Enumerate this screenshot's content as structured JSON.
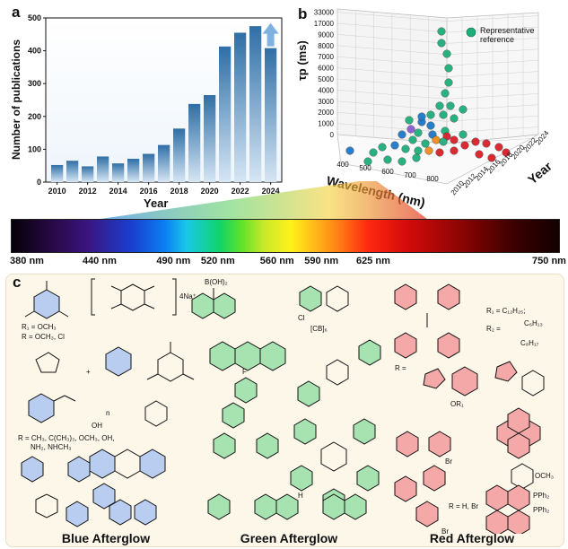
{
  "panel_a": {
    "letter": "a",
    "chart_data": {
      "type": "bar",
      "categories": [
        "2010",
        "2011",
        "2012",
        "2013",
        "2014",
        "2015",
        "2016",
        "2017",
        "2018",
        "2019",
        "2020",
        "2021",
        "2022",
        "2023",
        "2024"
      ],
      "values": [
        52,
        65,
        48,
        78,
        57,
        71,
        86,
        113,
        163,
        238,
        265,
        413,
        455,
        475,
        408
      ],
      "xlabel": "Year",
      "ylabel": "Number of publications",
      "ylim": [
        0,
        500
      ],
      "yticks": [
        "0",
        "100",
        "200",
        "300",
        "400",
        "500"
      ],
      "xticks": [
        "2010",
        "2012",
        "2014",
        "2016",
        "2018",
        "2020",
        "2022",
        "2024"
      ],
      "colors": {
        "bar_top": "#2f6fa6",
        "bar_bottom": "#cfe1f1",
        "arrow": "#7fb2e0"
      }
    }
  },
  "panel_b": {
    "letter": "b",
    "chart_data": {
      "type": "scatter",
      "xlabel": "Wavelength (nm)",
      "ylabel": "τp (ms)",
      "zlabel": "Year",
      "xticks": [
        "400",
        "500",
        "600",
        "700",
        "800"
      ],
      "yticks": [
        "0",
        "1000",
        "2000",
        "3000",
        "4000",
        "5000",
        "6000",
        "7000",
        "8000",
        "9000",
        "17000",
        "33000"
      ],
      "zticks": [
        "2010",
        "2012",
        "2014",
        "2016",
        "2018",
        "2020",
        "2022",
        "2024"
      ],
      "legend": "Representative reference",
      "legend_position": "top-right",
      "colors": {
        "green": "#1fae7a",
        "blue": "#1f78c8",
        "red": "#d8202a",
        "orange": "#f08a1c",
        "purple": "#8a5bd1"
      }
    }
  },
  "spectrum": {
    "labels": [
      {
        "text": "380 nm",
        "nm": 380
      },
      {
        "text": "440 nm",
        "nm": 440
      },
      {
        "text": "490 nm",
        "nm": 490
      },
      {
        "text": "520 nm",
        "nm": 520
      },
      {
        "text": "560 nm",
        "nm": 560
      },
      {
        "text": "590 nm",
        "nm": 590
      },
      {
        "text": "625 nm",
        "nm": 625
      },
      {
        "text": "750 nm",
        "nm": 750
      }
    ]
  },
  "panel_c": {
    "letter": "c",
    "categories": [
      "Blue Afterglow",
      "Green Afterglow",
      "Red Afterglow"
    ],
    "blue_texts": {
      "r1": "R₁ = OCH₃",
      "r1b": "R = OCH₃, Cl",
      "sodium": "4Na⁺",
      "rlist1": "R = CH₃, C(CH₃)₃, OCH₃, OH,",
      "rlist2": "NH₂, NHCH₃",
      "oh": "OH",
      "n": "n",
      "plus": "+"
    },
    "green_texts": {
      "boron": "B(OH)₂",
      "cl": "Cl",
      "cb6": "[CB]₆",
      "f": "F",
      "s": "S",
      "n": "N",
      "nh": "H"
    },
    "red_texts": {
      "r1": "R₁ = C₁₂H₂₅;",
      "r2": "R₂ = ",
      "c6h13": "C₆H₁₃",
      "c8h17": "C₈H₁₇",
      "r_eq": "R =",
      "rhbr": "R = H, Br",
      "pph2": "PPh₂",
      "br": "Br",
      "och3": "OCH₃",
      "or1": "OR₁"
    }
  }
}
